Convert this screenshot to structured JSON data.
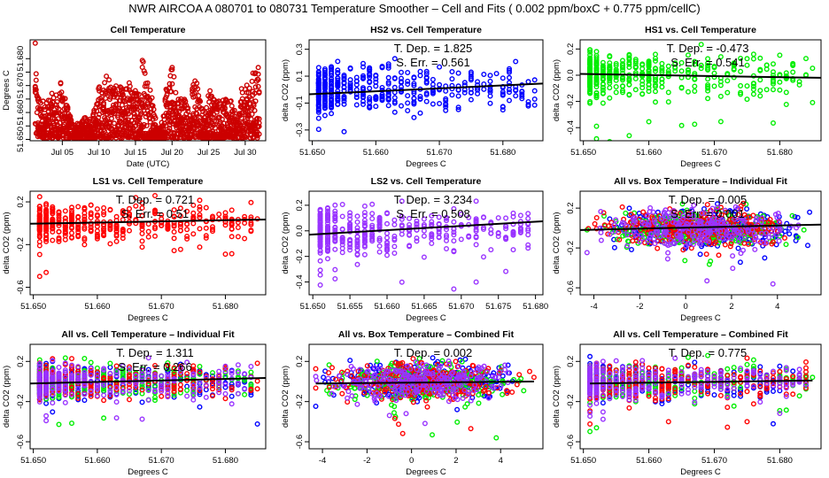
{
  "title": "NWR   AIRCOA A   080701 to 080731   Temperature Smoother – Cell and Fits ( 0.002  ppm/boxC +  0.775  ppm/cellC)",
  "colors": {
    "cell": "#cc0000",
    "HS2": "#0000ff",
    "HS1": "#00ee00",
    "LS1": "#ff0000",
    "LS2": "#9933ff",
    "fit": "#000000"
  },
  "chart_data": [
    {
      "type": "scatter",
      "title": "Cell Temperature",
      "xlabel": "Date (UTC)",
      "ylabel": "Degrees C",
      "x_ticks": [
        "Jul 05",
        "Jul 10",
        "Jul 15",
        "Jul 20",
        "Jul 25",
        "Jul 30"
      ],
      "x_tick_days": [
        5,
        10,
        15,
        20,
        25,
        30
      ],
      "xlim": [
        0.6,
        32.8
      ],
      "y_ticks": [
        "51.650",
        "",
        "51.660",
        "",
        "51.670",
        "",
        "51.680"
      ],
      "y_tick_values": [
        51.65,
        51.655,
        51.66,
        51.665,
        51.67,
        51.675,
        51.68
      ],
      "ylim": [
        51.6495,
        51.687
      ],
      "series": [
        {
          "name": "cell",
          "color_key": "cell",
          "envelope_by_day": [
            [
              1.3,
              51.686
            ],
            [
              1.6,
              51.67
            ],
            [
              2,
              51.664
            ],
            [
              2.5,
              51.666
            ],
            [
              3,
              51.664
            ],
            [
              3.5,
              51.667
            ],
            [
              4,
              51.668
            ],
            [
              4.5,
              51.666
            ],
            [
              5,
              51.676
            ],
            [
              5.5,
              51.664
            ],
            [
              6,
              51.66
            ],
            [
              6.5,
              51.656
            ],
            [
              7,
              51.656
            ],
            [
              7.5,
              51.656
            ],
            [
              8,
              51.658
            ],
            [
              8.5,
              51.659
            ],
            [
              9,
              51.658
            ],
            [
              9.5,
              51.663
            ],
            [
              10,
              51.671
            ],
            [
              10.5,
              51.668
            ],
            [
              11,
              51.676
            ],
            [
              11.5,
              51.672
            ],
            [
              12,
              51.674
            ],
            [
              12.5,
              51.668
            ],
            [
              13,
              51.67
            ],
            [
              13.5,
              51.666
            ],
            [
              14,
              51.676
            ],
            [
              14.5,
              51.668
            ],
            [
              15,
              51.669
            ],
            [
              15.5,
              51.672
            ],
            [
              16,
              51.684
            ],
            [
              16.5,
              51.676
            ],
            [
              17,
              51.674
            ],
            [
              17.5,
              51.662
            ],
            [
              18,
              51.654
            ],
            [
              18.5,
              51.655
            ],
            [
              19,
              51.668
            ],
            [
              19.5,
              51.67
            ],
            [
              20,
              51.679
            ],
            [
              20.5,
              51.67
            ],
            [
              21,
              51.666
            ],
            [
              21.5,
              51.667
            ],
            [
              22,
              51.666
            ],
            [
              22.5,
              51.658
            ],
            [
              23,
              51.679
            ],
            [
              23.5,
              51.67
            ],
            [
              24,
              51.663
            ],
            [
              24.5,
              51.659
            ],
            [
              25,
              51.67
            ],
            [
              25.5,
              51.667
            ],
            [
              26,
              51.667
            ],
            [
              26.5,
              51.665
            ],
            [
              27,
              51.665
            ],
            [
              27.5,
              51.665
            ],
            [
              28,
              51.665
            ],
            [
              28.5,
              51.661
            ],
            [
              29,
              51.658
            ],
            [
              29.5,
              51.669
            ],
            [
              30,
              51.669
            ],
            [
              30.5,
              51.672
            ],
            [
              31,
              51.675
            ],
            [
              31.5,
              51.677
            ],
            [
              32,
              51.678
            ]
          ]
        }
      ]
    },
    {
      "type": "scatter",
      "title": "HS2 vs. Cell Temperature",
      "xlabel": "Degrees C",
      "ylabel": "delta CO2 (ppm)",
      "x_ticks": [
        "51.650",
        "51.660",
        "51.670",
        "51.680"
      ],
      "x_tick_values": [
        51.65,
        51.66,
        51.67,
        51.68
      ],
      "xlim": [
        51.6495,
        51.6863
      ],
      "y_ticks": [
        "-0.3",
        "-0.1",
        "0.1",
        "0.3"
      ],
      "y_tick_values": [
        -0.3,
        -0.1,
        0.1,
        0.3
      ],
      "ylim": [
        -0.38,
        0.37
      ],
      "series": [
        {
          "name": "HS2",
          "color_key": "HS2"
        }
      ],
      "fit": {
        "intercept_at_xmin": -0.035,
        "value_at_xmax": 0.045
      },
      "annotations": {
        "tdep_label": "T. Dep. =",
        "tdep_value": "1.825",
        "serr_label": "S. Err. =",
        "serr_value": "0.561"
      }
    },
    {
      "type": "scatter",
      "title": "HS1 vs. Cell Temperature",
      "xlabel": "Degrees C",
      "ylabel": "delta CO2 (ppm)",
      "x_ticks": [
        "51.650",
        "51.660",
        "51.670",
        "51.680"
      ],
      "x_tick_values": [
        51.65,
        51.66,
        51.67,
        51.68
      ],
      "xlim": [
        51.6495,
        51.6863
      ],
      "y_ticks": [
        "-0.4",
        "-0.2",
        "0.0",
        "0.2"
      ],
      "y_tick_values": [
        -0.4,
        -0.2,
        0.0,
        0.2
      ],
      "ylim": [
        -0.5,
        0.27
      ],
      "series": [
        {
          "name": "HS1",
          "color_key": "HS1"
        }
      ],
      "fit": {
        "intercept_at_xmin": 0.01,
        "value_at_xmax": -0.02
      },
      "annotations": {
        "tdep_label": "T. Dep. =",
        "tdep_value": "-0.473",
        "serr_label": "S. Err. =",
        "serr_value": "0.541"
      }
    },
    {
      "type": "scatter",
      "title": "LS1 vs. Cell Temperature",
      "xlabel": "Degrees C",
      "ylabel": "delta CO2 (ppm)",
      "x_ticks": [
        "51.650",
        "51.660",
        "51.670",
        "51.680"
      ],
      "x_tick_values": [
        51.65,
        51.66,
        51.67,
        51.68
      ],
      "xlim": [
        51.6495,
        51.6863
      ],
      "y_ticks": [
        "-0.6",
        "-0.2",
        "0.2"
      ],
      "y_tick_values": [
        -0.6,
        -0.2,
        0.2
      ],
      "ylim": [
        -0.67,
        0.3
      ],
      "series": [
        {
          "name": "LS1",
          "color_key": "LS1"
        }
      ],
      "fit": {
        "intercept_at_xmin": -0.005,
        "value_at_xmax": 0.035
      },
      "annotations": {
        "tdep_label": "T. Dep. =",
        "tdep_value": "0.721",
        "serr_label": "S. Err. =",
        "serr_value": "0.51"
      }
    },
    {
      "type": "scatter",
      "title": "LS2 vs. Cell Temperature",
      "xlabel": "Degrees C",
      "ylabel": "delta CO2 (ppm)",
      "x_ticks": [
        "51.650",
        "51.655",
        "51.660",
        "51.665",
        "51.670",
        "51.675",
        "51.680"
      ],
      "x_tick_values": [
        51.65,
        51.655,
        51.66,
        51.665,
        51.67,
        51.675,
        51.68
      ],
      "xlim": [
        51.6495,
        51.681
      ],
      "y_ticks": [
        "-0.4",
        "-0.2",
        "0.0",
        "0.2"
      ],
      "y_tick_values": [
        -0.4,
        -0.2,
        0.0,
        0.2
      ],
      "ylim": [
        -0.5,
        0.31
      ],
      "series": [
        {
          "name": "LS2",
          "color_key": "LS2"
        }
      ],
      "fit": {
        "intercept_at_xmin": -0.03,
        "value_at_xmax": 0.075
      },
      "annotations": {
        "tdep_label": "T. Dep. =",
        "tdep_value": "3.234",
        "serr_label": "S. Err. =",
        "serr_value": "0.508"
      }
    },
    {
      "type": "scatter",
      "title": "All vs. Box Temperature – Individual Fit",
      "xlabel": "Degrees C",
      "ylabel": "delta CO2 (ppm)",
      "x_ticks": [
        "-4",
        "-2",
        "0",
        "2",
        "4"
      ],
      "x_tick_values": [
        -4,
        -2,
        0,
        2,
        4
      ],
      "xlim": [
        -4.6,
        5.9
      ],
      "y_ticks": [
        "-0.6",
        "-0.2",
        "0.2"
      ],
      "y_tick_values": [
        -0.6,
        -0.2,
        0.2
      ],
      "ylim": [
        -0.67,
        0.37
      ],
      "series": [
        {
          "name": "HS2",
          "color_key": "HS2"
        },
        {
          "name": "HS1",
          "color_key": "HS1"
        },
        {
          "name": "LS1",
          "color_key": "LS1"
        },
        {
          "name": "LS2",
          "color_key": "LS2"
        }
      ],
      "fit": {
        "intercept_at_xmin": -0.02,
        "value_at_xmax": 0.035
      },
      "annotations": {
        "tdep_label": "T. Dep. =",
        "tdep_value": "0.005",
        "serr_label": "S. Err. =",
        "serr_value": "0.001"
      }
    },
    {
      "type": "scatter",
      "title": "All vs. Cell Temperature – Individual Fit",
      "xlabel": "Degrees C",
      "ylabel": "delta CO2 (ppm)",
      "x_ticks": [
        "51.650",
        "51.660",
        "51.670",
        "51.680"
      ],
      "x_tick_values": [
        51.65,
        51.66,
        51.67,
        51.68
      ],
      "xlim": [
        51.6495,
        51.6863
      ],
      "y_ticks": [
        "-0.6",
        "-0.2",
        "0.2"
      ],
      "y_tick_values": [
        -0.6,
        -0.2,
        0.2
      ],
      "ylim": [
        -0.67,
        0.37
      ],
      "series": [
        {
          "name": "HS2",
          "color_key": "HS2"
        },
        {
          "name": "HS1",
          "color_key": "HS1"
        },
        {
          "name": "LS1",
          "color_key": "LS1"
        },
        {
          "name": "LS2",
          "color_key": "LS2"
        }
      ],
      "fit": {
        "intercept_at_xmin": -0.02,
        "value_at_xmax": 0.035
      },
      "annotations": {
        "tdep_label": "T. Dep. =",
        "tdep_value": "1.311",
        "serr_label": "S. Err. =",
        "serr_value": "0.266"
      }
    },
    {
      "type": "scatter",
      "title": "All vs. Box Temperature – Combined Fit",
      "xlabel": "Degrees C",
      "ylabel": "delta CO2 (ppm)",
      "x_ticks": [
        "-4",
        "-2",
        "0",
        "2",
        "4"
      ],
      "x_tick_values": [
        -4,
        -2,
        0,
        2,
        4
      ],
      "xlim": [
        -4.6,
        5.9
      ],
      "y_ticks": [
        "-0.6",
        "-0.2",
        "0.2"
      ],
      "y_tick_values": [
        -0.6,
        -0.2,
        0.2
      ],
      "ylim": [
        -0.67,
        0.37
      ],
      "series": [
        {
          "name": "HS2",
          "color_key": "HS2"
        },
        {
          "name": "HS1",
          "color_key": "HS1"
        },
        {
          "name": "LS1",
          "color_key": "LS1"
        },
        {
          "name": "LS2",
          "color_key": "LS2"
        }
      ],
      "fit": {
        "intercept_at_xmin": -0.02,
        "value_at_xmax": 0.0,
        "x_from": -4.3,
        "x_to": 5.5
      },
      "annotations": {
        "tdep_label": "T. Dep. =",
        "tdep_value": "0.002"
      }
    },
    {
      "type": "scatter",
      "title": "All vs. Cell Temperature – Combined Fit",
      "xlabel": "Degrees C",
      "ylabel": "delta CO2 (ppm)",
      "x_ticks": [
        "51.650",
        "51.660",
        "51.670",
        "51.680"
      ],
      "x_tick_values": [
        51.65,
        51.66,
        51.67,
        51.68
      ],
      "xlim": [
        51.6495,
        51.6863
      ],
      "y_ticks": [
        "-0.6",
        "-0.2",
        "0.2"
      ],
      "y_tick_values": [
        -0.6,
        -0.2,
        0.2
      ],
      "ylim": [
        -0.67,
        0.37
      ],
      "series": [
        {
          "name": "HS2",
          "color_key": "HS2"
        },
        {
          "name": "HS1",
          "color_key": "HS1"
        },
        {
          "name": "LS1",
          "color_key": "LS1"
        },
        {
          "name": "LS2",
          "color_key": "LS2"
        }
      ],
      "fit": {
        "intercept_at_xmin": -0.02,
        "value_at_xmax": 0.01,
        "x_from": 51.651,
        "x_to": 51.685
      },
      "annotations": {
        "tdep_label": "T. Dep. =",
        "tdep_value": "0.775"
      }
    }
  ]
}
